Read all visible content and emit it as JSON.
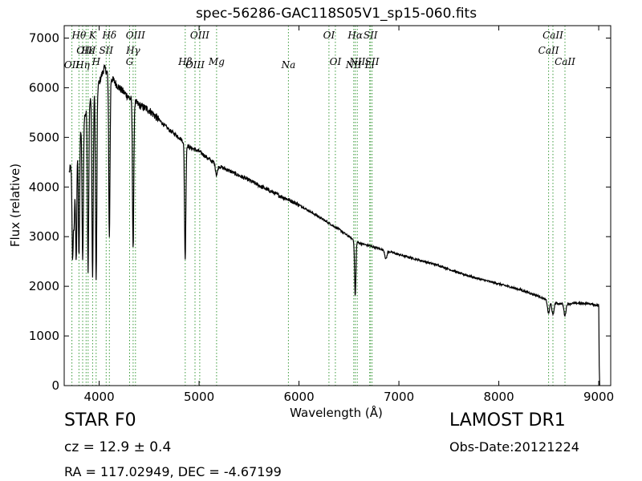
{
  "chart_data": {
    "type": "line",
    "title": "spec-56286-GAC118S05V1_sp15-060.fits",
    "xlabel": "Wavelength (Å)",
    "ylabel": "Flux (relative)",
    "xlim": [
      3650,
      9120
    ],
    "ylim": [
      0,
      7250
    ],
    "xticks": [
      4000,
      5000,
      6000,
      7000,
      8000,
      9000
    ],
    "yticks": [
      0,
      1000,
      2000,
      3000,
      4000,
      5000,
      6000,
      7000
    ],
    "grid": false,
    "line_color": "#000000",
    "marker_color": "#3a9a3a",
    "spectrum": {
      "continuum": [
        [
          3700,
          4300
        ],
        [
          3800,
          5100
        ],
        [
          3900,
          5700
        ],
        [
          4000,
          6100
        ],
        [
          4050,
          6400
        ],
        [
          4100,
          6250
        ],
        [
          4200,
          6000
        ],
        [
          4300,
          5800
        ],
        [
          4400,
          5650
        ],
        [
          4500,
          5550
        ],
        [
          4600,
          5350
        ],
        [
          4700,
          5150
        ],
        [
          4800,
          5000
        ],
        [
          4900,
          4800
        ],
        [
          5000,
          4720
        ],
        [
          5100,
          4560
        ],
        [
          5200,
          4420
        ],
        [
          5300,
          4330
        ],
        [
          5400,
          4230
        ],
        [
          5500,
          4140
        ],
        [
          5600,
          4030
        ],
        [
          5700,
          3930
        ],
        [
          5800,
          3830
        ],
        [
          5900,
          3740
        ],
        [
          6000,
          3640
        ],
        [
          6100,
          3520
        ],
        [
          6200,
          3400
        ],
        [
          6300,
          3270
        ],
        [
          6400,
          3150
        ],
        [
          6500,
          3000
        ],
        [
          6600,
          2870
        ],
        [
          6700,
          2820
        ],
        [
          6800,
          2760
        ],
        [
          7000,
          2640
        ],
        [
          7200,
          2530
        ],
        [
          7400,
          2420
        ],
        [
          7600,
          2270
        ],
        [
          7800,
          2150
        ],
        [
          8000,
          2050
        ],
        [
          8200,
          1940
        ],
        [
          8400,
          1800
        ],
        [
          8500,
          1700
        ],
        [
          8600,
          1650
        ],
        [
          8700,
          1650
        ],
        [
          8800,
          1660
        ],
        [
          8900,
          1650
        ],
        [
          8980,
          1620
        ]
      ],
      "absorption": [
        [
          3734,
          2580
        ],
        [
          3750,
          3300
        ],
        [
          3770,
          2550
        ],
        [
          3798,
          2650
        ],
        [
          3835,
          2480
        ],
        [
          3889,
          2350
        ],
        [
          3934,
          2150
        ],
        [
          3970,
          2080
        ],
        [
          4102,
          2980
        ],
        [
          4340,
          2770
        ],
        [
          4861,
          2520
        ],
        [
          5175,
          4250
        ],
        [
          6563,
          1800
        ],
        [
          6870,
          2550
        ],
        [
          8498,
          1450
        ],
        [
          8542,
          1420
        ],
        [
          8662,
          1410
        ]
      ],
      "end": [
        [
          9000,
          1600
        ],
        [
          9005,
          400
        ],
        [
          9010,
          0
        ]
      ]
    },
    "lines": [
      {
        "label": "OII",
        "x": 3727,
        "row": 2
      },
      {
        "label": "Hθ",
        "x": 3798,
        "row": 0
      },
      {
        "label": "OIII",
        "x": 3869,
        "row": 1
      },
      {
        "label": "Hη",
        "x": 3835,
        "row": 2
      },
      {
        "label": "Hε",
        "x": 3889,
        "row": 1
      },
      {
        "label": "K",
        "x": 3934,
        "row": 0
      },
      {
        "label": "H",
        "x": 3970,
        "row": 3
      },
      {
        "label": "SII",
        "x": 4070,
        "row": 1
      },
      {
        "label": "Hδ",
        "x": 4102,
        "row": 0
      },
      {
        "label": "G",
        "x": 4305,
        "row": 3
      },
      {
        "label": "Hγ",
        "x": 4340,
        "row": 1
      },
      {
        "label": "OIII",
        "x": 4363,
        "row": 0
      },
      {
        "label": "Hβ",
        "x": 4861,
        "row": 3
      },
      {
        "label": "OIII",
        "x": 4959,
        "row": 2
      },
      {
        "label": "OIII",
        "x": 5007,
        "row": 0
      },
      {
        "label": "Mg",
        "x": 5175,
        "row": 3
      },
      {
        "label": "Na",
        "x": 5894,
        "row": 2
      },
      {
        "label": "OI",
        "x": 6300,
        "row": 0
      },
      {
        "label": "OI",
        "x": 6364,
        "row": 3
      },
      {
        "label": "NII",
        "x": 6548,
        "row": 2
      },
      {
        "label": "Hα",
        "x": 6563,
        "row": 0
      },
      {
        "label": "NII",
        "x": 6583,
        "row": 3
      },
      {
        "label": "Li",
        "x": 6708,
        "row": 2
      },
      {
        "label": "SII",
        "x": 6716,
        "row": 0
      },
      {
        "label": "SII",
        "x": 6731,
        "row": 3
      },
      {
        "label": "CaII",
        "x": 8498,
        "row": 1
      },
      {
        "label": "CaII",
        "x": 8542,
        "row": 0
      },
      {
        "label": "CaII",
        "x": 8662,
        "row": 3
      }
    ]
  },
  "info": {
    "object_class": "STAR   F0",
    "cz": "cz = 12.9  ± 0.4",
    "radec": "RA = 117.02949, DEC = -4.67199",
    "survey": "LAMOST DR1",
    "obs_date": "Obs-Date:20121224"
  }
}
